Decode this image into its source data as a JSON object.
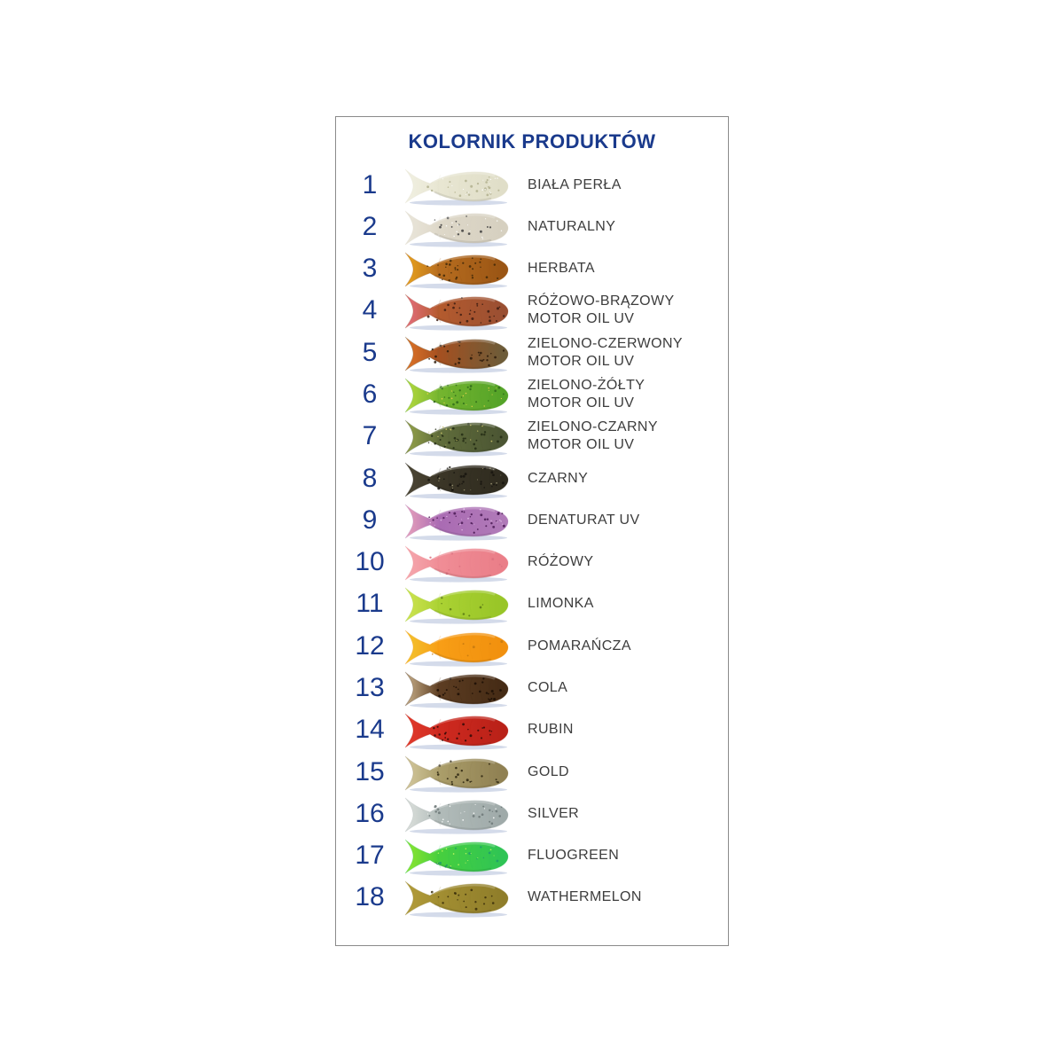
{
  "page": {
    "title": "KOLORNIK PRODUKTÓW"
  },
  "style": {
    "accent_color": "#1a3a8c",
    "label_color": "#3d3d3d",
    "border_color": "#8a8a8a",
    "shadow_color": "#a9b8d6",
    "background_color": "#ffffff"
  },
  "rows": [
    {
      "number": "1",
      "label": "BIAŁA PERŁA",
      "fish": {
        "tail": "#f1f0e2",
        "body": "#e8e6d2",
        "head": "#e0dec8",
        "speckle": "#b2b08e",
        "speckles": 22,
        "glitter": "#ffffff"
      }
    },
    {
      "number": "2",
      "label": "NATURALNY",
      "fish": {
        "tail": "#eae6db",
        "body": "#ded8c9",
        "head": "#d6d0c0",
        "speckle": "#3f3f3f",
        "speckles": 14,
        "glitter": "#ffffff"
      }
    },
    {
      "number": "3",
      "label": "HERBATA",
      "fish": {
        "tail": "#eaa41d",
        "body": "#b76d1f",
        "head": "#9a5514",
        "speckle": "#3f2808",
        "speckles": 30,
        "glitter": null
      }
    },
    {
      "number": "4",
      "label": "RÓŻOWO-BRĄZOWY\nMOTOR OIL UV",
      "fish": {
        "tail": "#e66e80",
        "body": "#b45b2e",
        "head": "#9a4f32",
        "speckle": "#3c1c12",
        "speckles": 28,
        "glitter": null
      }
    },
    {
      "number": "5",
      "label": "ZIELONO-CZERWONY\nMOTOR OIL UV",
      "fish": {
        "tail": "#e07427",
        "body": "#a55020",
        "head": "#6d5c39",
        "speckle": "#2c1a0a",
        "speckles": 28,
        "glitter": null
      }
    },
    {
      "number": "6",
      "label": "ZIELONO-ŻÓŁTY\nMOTOR OIL UV",
      "fish": {
        "tail": "#b7da3f",
        "body": "#75b52f",
        "head": "#54a328",
        "speckle": "#2f6b1a",
        "speckles": 24,
        "glitter": "#e8d24a"
      }
    },
    {
      "number": "7",
      "label": "ZIELONO-CZARNY\nMOTOR OIL UV",
      "fish": {
        "tail": "#96a44b",
        "body": "#606d3b",
        "head": "#4b5533",
        "speckle": "#232c14",
        "speckles": 30,
        "glitter": "#c9c06a"
      }
    },
    {
      "number": "8",
      "label": "CZARNY",
      "fish": {
        "tail": "#4d4736",
        "body": "#3b3627",
        "head": "#2f2b1f",
        "speckle": "#18150f",
        "speckles": 28,
        "glitter": "#9a9372"
      }
    },
    {
      "number": "9",
      "label": "DENATURAT UV",
      "fish": {
        "tail": "#e9a2bb",
        "body": "#aa6bb3",
        "head": "#b07ab8",
        "speckle": "#4a1b55",
        "speckles": 30,
        "glitter": "#e3c0e8"
      }
    },
    {
      "number": "10",
      "label": "RÓŻOWY",
      "fish": {
        "tail": "#f5a9af",
        "body": "#f08d96",
        "head": "#ea7e88",
        "speckle": "#dd7280",
        "speckles": 8,
        "glitter": null
      }
    },
    {
      "number": "11",
      "label": "LIMONKA",
      "fish": {
        "tail": "#cfe452",
        "body": "#abd233",
        "head": "#98c527",
        "speckle": "#5a7a14",
        "speckles": 7,
        "glitter": null
      }
    },
    {
      "number": "12",
      "label": "POMARAŃCZA",
      "fish": {
        "tail": "#f2c52f",
        "body": "#f89e16",
        "head": "#f1900e",
        "speckle": "#c5790f",
        "speckles": 6,
        "glitter": null
      }
    },
    {
      "number": "13",
      "label": "COLA",
      "fish": {
        "tail": "#c9b18b",
        "body": "#5d3d22",
        "head": "#452b15",
        "speckle": "#1b0e05",
        "speckles": 26,
        "glitter": null
      }
    },
    {
      "number": "14",
      "label": "RUBIN",
      "fish": {
        "tail": "#e23b2c",
        "body": "#cf2a20",
        "head": "#b92118",
        "speckle": "#2f0a08",
        "speckles": 22,
        "glitter": null
      }
    },
    {
      "number": "15",
      "label": "GOLD",
      "fish": {
        "tail": "#d4c99f",
        "body": "#ab9e6a",
        "head": "#8f8052",
        "speckle": "#2b240f",
        "speckles": 20,
        "glitter": null
      }
    },
    {
      "number": "16",
      "label": "SILVER",
      "fish": {
        "tail": "#dde1dd",
        "body": "#b1bbb9",
        "head": "#9faaa9",
        "speckle": "#6d7878",
        "speckles": 18,
        "glitter": "#ffffff"
      }
    },
    {
      "number": "17",
      "label": "FLUOGREEN",
      "fish": {
        "tail": "#8fe62f",
        "body": "#47cf3e",
        "head": "#2fc455",
        "speckle": "#1f9a6e",
        "speckles": 12,
        "glitter": "#c8f95e"
      }
    },
    {
      "number": "18",
      "label": "WATHERMELON",
      "fish": {
        "tail": "#b29c3b",
        "body": "#a28e32",
        "head": "#8f7d2a",
        "speckle": "#3a2e0b",
        "speckles": 18,
        "glitter": null
      }
    }
  ]
}
